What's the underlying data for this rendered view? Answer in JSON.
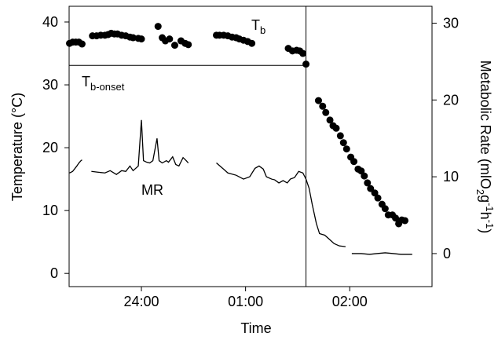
{
  "chart_data": {
    "type": "combo",
    "xlabel": "Time",
    "ylabel": "Temperature (°C)",
    "y2label_parts": [
      "Metabolic Rate (mlO",
      "2",
      "g",
      "-1",
      "h",
      "-1",
      ")"
    ],
    "annotations": {
      "tb": [
        "T",
        "b"
      ],
      "tb_onset": [
        "T",
        "b-onset"
      ],
      "mr": "MR"
    },
    "xlim": [
      23.306,
      26.79
    ],
    "xticks": [
      {
        "value": 24,
        "label": "24:00"
      },
      {
        "value": 25,
        "label": "01:00"
      },
      {
        "value": 26,
        "label": "02:00"
      }
    ],
    "ylim": [
      -2.1,
      42.5
    ],
    "yticks": [
      0,
      10,
      20,
      30,
      40
    ],
    "y2lim": [
      -4.3,
      32.2
    ],
    "y2ticks": [
      0,
      10,
      20,
      30
    ],
    "onset_temp": 33.1,
    "onset_time": 25.58,
    "series": [
      {
        "type": "scatter",
        "color": "#000000",
        "x": [
          23.31,
          23.34,
          23.37,
          23.4,
          23.43,
          23.53,
          23.57,
          23.61,
          23.65,
          23.68,
          23.71,
          23.74,
          23.77,
          23.81,
          23.85,
          23.89,
          23.92,
          23.97,
          24.0,
          24.16,
          24.2,
          24.23,
          24.27,
          24.32,
          24.38,
          24.42,
          24.45,
          24.72,
          24.75,
          24.79,
          24.83,
          24.87,
          24.91,
          24.94,
          24.98,
          25.02,
          25.06,
          25.41,
          25.45,
          25.49,
          25.52,
          25.55,
          25.58,
          25.7,
          25.74,
          25.77,
          25.81,
          25.84,
          25.87,
          25.91,
          25.94,
          25.97,
          26.01,
          26.04,
          26.08,
          26.11,
          26.14,
          26.17,
          26.2,
          26.24,
          26.27,
          26.31,
          26.34,
          26.37,
          26.41,
          26.44,
          26.47,
          26.5,
          26.53
        ],
        "values": [
          36.6,
          36.8,
          36.8,
          36.8,
          36.5,
          37.8,
          37.8,
          37.9,
          37.9,
          38.0,
          38.2,
          38.1,
          38.1,
          37.9,
          37.8,
          37.6,
          37.5,
          37.4,
          37.3,
          39.3,
          37.5,
          37.0,
          37.3,
          36.3,
          37.0,
          36.6,
          36.4,
          37.9,
          37.9,
          37.9,
          37.8,
          37.6,
          37.5,
          37.3,
          37.1,
          36.9,
          36.6,
          35.8,
          35.4,
          35.5,
          35.4,
          35.0,
          33.3,
          27.5,
          26.6,
          25.6,
          24.4,
          23.5,
          23.1,
          21.9,
          20.8,
          19.8,
          18.5,
          17.8,
          16.6,
          16.3,
          15.5,
          14.4,
          13.5,
          12.8,
          12.0,
          11.0,
          10.3,
          9.3,
          9.3,
          8.8,
          7.9,
          8.5,
          8.4
        ]
      },
      {
        "type": "line",
        "axis": "y2",
        "color": "#000000",
        "x": [
          23.31,
          23.34,
          23.38,
          23.4,
          23.42,
          23.43,
          23.5,
          23.52,
          23.58,
          23.65,
          23.7,
          23.76,
          23.81,
          23.85,
          23.89,
          23.92,
          23.97,
          24.0,
          24.02,
          24.05,
          24.08,
          24.11,
          24.15,
          24.17,
          24.2,
          24.24,
          24.26,
          24.3,
          24.33,
          24.36,
          24.4,
          24.43,
          24.45,
          24.6,
          24.72,
          24.78,
          24.83,
          24.91,
          24.98,
          25.04,
          25.09,
          25.13,
          25.17,
          25.2,
          25.25,
          25.28,
          25.32,
          25.36,
          25.4,
          25.43,
          25.47,
          25.51,
          25.55,
          25.58,
          25.61,
          25.64,
          25.68,
          25.71,
          25.76,
          25.81,
          25.85,
          25.9,
          25.96,
          25.98,
          26.02,
          26.11,
          26.19,
          26.26,
          26.34,
          26.42,
          26.49,
          26.6
        ],
        "values": [
          10.5,
          10.7,
          11.4,
          11.8,
          12.1,
          12.2,
          null,
          10.7,
          10.6,
          10.5,
          10.8,
          10.3,
          10.8,
          10.7,
          11.4,
          10.8,
          11.4,
          17.4,
          12.1,
          11.9,
          11.8,
          12.1,
          15.0,
          12.1,
          11.8,
          12.1,
          11.9,
          12.6,
          11.6,
          11.4,
          12.5,
          12.1,
          11.8,
          null,
          11.8,
          11.1,
          10.5,
          10.2,
          9.7,
          10.0,
          11.1,
          11.4,
          11.0,
          10.0,
          9.7,
          9.6,
          9.2,
          9.5,
          9.2,
          9.7,
          9.9,
          10.7,
          10.5,
          9.7,
          8.5,
          6.4,
          3.9,
          2.6,
          2.4,
          1.8,
          1.3,
          1.0,
          0.9,
          null,
          0,
          0,
          -0.1,
          0,
          0.1,
          0,
          -0.1,
          -0.1
        ]
      }
    ]
  }
}
